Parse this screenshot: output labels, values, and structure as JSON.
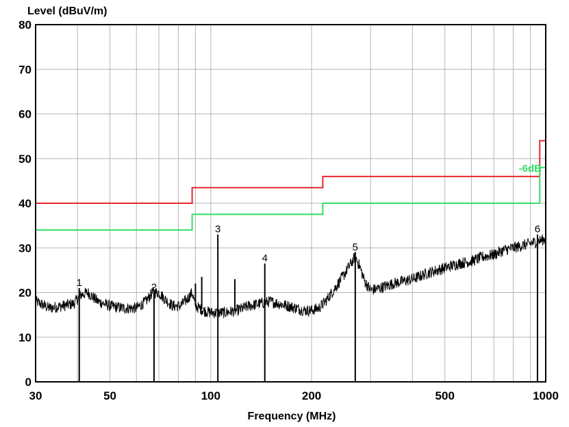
{
  "chart_data": {
    "type": "line",
    "title": "",
    "ylabel": "Level (dBuV/m)",
    "xlabel": "Frequency (MHz)",
    "x_scale": "log",
    "xlim": [
      30,
      1000
    ],
    "ylim": [
      0,
      80
    ],
    "grid": true,
    "x_ticks": [
      30,
      50,
      100,
      200,
      500,
      1000
    ],
    "x_tick_labels": [
      "30",
      "50",
      "100",
      "200",
      "500",
      "1000"
    ],
    "y_ticks": [
      0,
      10,
      20,
      30,
      40,
      50,
      60,
      70,
      80
    ],
    "y_tick_labels": [
      "0",
      "10",
      "20",
      "30",
      "40",
      "50",
      "60",
      "70",
      "80"
    ],
    "limit_lines": [
      {
        "name": "limit",
        "color": "#e8272b",
        "points": [
          [
            30,
            40
          ],
          [
            88,
            40
          ],
          [
            88,
            43.5
          ],
          [
            216,
            43.5
          ],
          [
            216,
            46
          ],
          [
            960,
            46
          ],
          [
            960,
            54
          ],
          [
            1000,
            54
          ]
        ]
      },
      {
        "name": "margin",
        "label": "-6dB",
        "color": "#33dd66",
        "points": [
          [
            30,
            34
          ],
          [
            88,
            34
          ],
          [
            88,
            37.5
          ],
          [
            216,
            37.5
          ],
          [
            216,
            40
          ],
          [
            960,
            40
          ],
          [
            960,
            48
          ],
          [
            1000,
            48
          ]
        ]
      }
    ],
    "spectrum": {
      "color": "#000000",
      "anchor_points": [
        [
          30,
          18
        ],
        [
          33,
          16.5
        ],
        [
          36,
          17
        ],
        [
          39,
          17.5
        ],
        [
          41,
          19.5
        ],
        [
          43,
          20
        ],
        [
          46,
          18
        ],
        [
          50,
          17
        ],
        [
          55,
          16.5
        ],
        [
          60,
          16.5
        ],
        [
          64,
          18
        ],
        [
          67,
          20
        ],
        [
          70,
          20
        ],
        [
          73,
          18.5
        ],
        [
          77,
          17
        ],
        [
          81,
          17
        ],
        [
          85,
          18.5
        ],
        [
          88,
          20
        ],
        [
          90,
          17
        ],
        [
          95,
          16
        ],
        [
          100,
          15.5
        ],
        [
          110,
          15.5
        ],
        [
          120,
          16
        ],
        [
          130,
          17
        ],
        [
          140,
          17.5
        ],
        [
          150,
          18
        ],
        [
          160,
          17.5
        ],
        [
          170,
          17
        ],
        [
          180,
          16.5
        ],
        [
          190,
          16
        ],
        [
          200,
          16
        ],
        [
          210,
          16.5
        ],
        [
          220,
          18
        ],
        [
          230,
          20
        ],
        [
          240,
          22
        ],
        [
          250,
          24
        ],
        [
          262,
          26.5
        ],
        [
          270,
          28
        ],
        [
          278,
          26
        ],
        [
          288,
          22.5
        ],
        [
          300,
          20.5
        ],
        [
          320,
          21
        ],
        [
          350,
          22
        ],
        [
          400,
          23
        ],
        [
          450,
          24.5
        ],
        [
          500,
          25.5
        ],
        [
          550,
          26.5
        ],
        [
          600,
          27
        ],
        [
          650,
          28
        ],
        [
          700,
          28.5
        ],
        [
          750,
          29.5
        ],
        [
          800,
          30
        ],
        [
          850,
          30.5
        ],
        [
          900,
          31
        ],
        [
          950,
          31.5
        ],
        [
          1000,
          32
        ]
      ],
      "spikes": [
        [
          90,
          22
        ],
        [
          94,
          23.5
        ],
        [
          118,
          23
        ]
      ]
    },
    "markers": [
      {
        "label": "1",
        "x": 40.5,
        "y": 21
      },
      {
        "label": "2",
        "x": 67.7,
        "y": 20
      },
      {
        "label": "3",
        "x": 105,
        "y": 33
      },
      {
        "label": "4",
        "x": 145,
        "y": 26.5
      },
      {
        "label": "5",
        "x": 270,
        "y": 29
      },
      {
        "label": "6",
        "x": 945,
        "y": 33
      }
    ]
  }
}
